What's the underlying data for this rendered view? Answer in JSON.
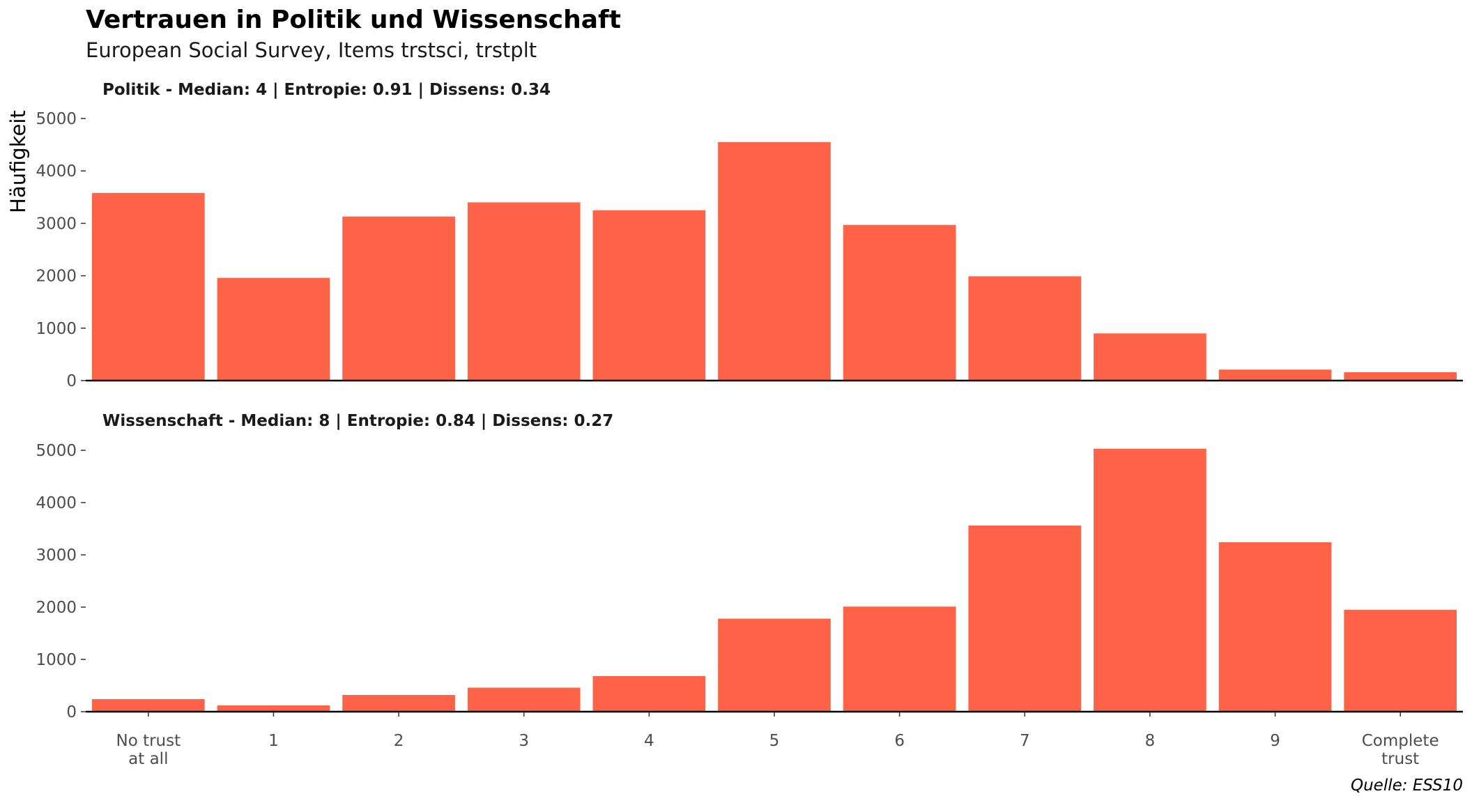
{
  "chart_data": {
    "type": "bar",
    "title": "Vertrauen in Politik und Wissenschaft",
    "subtitle": "European Social Survey, Items trstsci, trstplt",
    "ylabel": "Häufigkeit",
    "xlabel": "",
    "caption": "Quelle: ESS10",
    "bar_color": "#FF6347",
    "grid": false,
    "categories": [
      [
        "No trust",
        "at all"
      ],
      [
        "1"
      ],
      [
        "2"
      ],
      [
        "3"
      ],
      [
        "4"
      ],
      [
        "5"
      ],
      [
        "6"
      ],
      [
        "7"
      ],
      [
        "8"
      ],
      [
        "9"
      ],
      [
        "Complete",
        "trust"
      ]
    ],
    "ylim": [
      0,
      5000
    ],
    "yticks": [
      "0",
      "1000",
      "2000",
      "3000",
      "4000",
      "5000"
    ],
    "ytick_values": [
      0,
      1000,
      2000,
      3000,
      4000,
      5000
    ],
    "panels": [
      {
        "name": "Politik",
        "label": "Politik - Median: 4 | Entropie: 0.91 | Dissens: 0.34",
        "values": [
          3580,
          1960,
          3130,
          3400,
          3250,
          4550,
          2970,
          1990,
          900,
          210,
          160
        ]
      },
      {
        "name": "Wissenschaft",
        "label": "Wissenschaft - Median: 8 | Entropie: 0.84 | Dissens: 0.27",
        "values": [
          240,
          120,
          320,
          460,
          680,
          1780,
          2010,
          3560,
          5030,
          3240,
          1950
        ]
      }
    ]
  }
}
